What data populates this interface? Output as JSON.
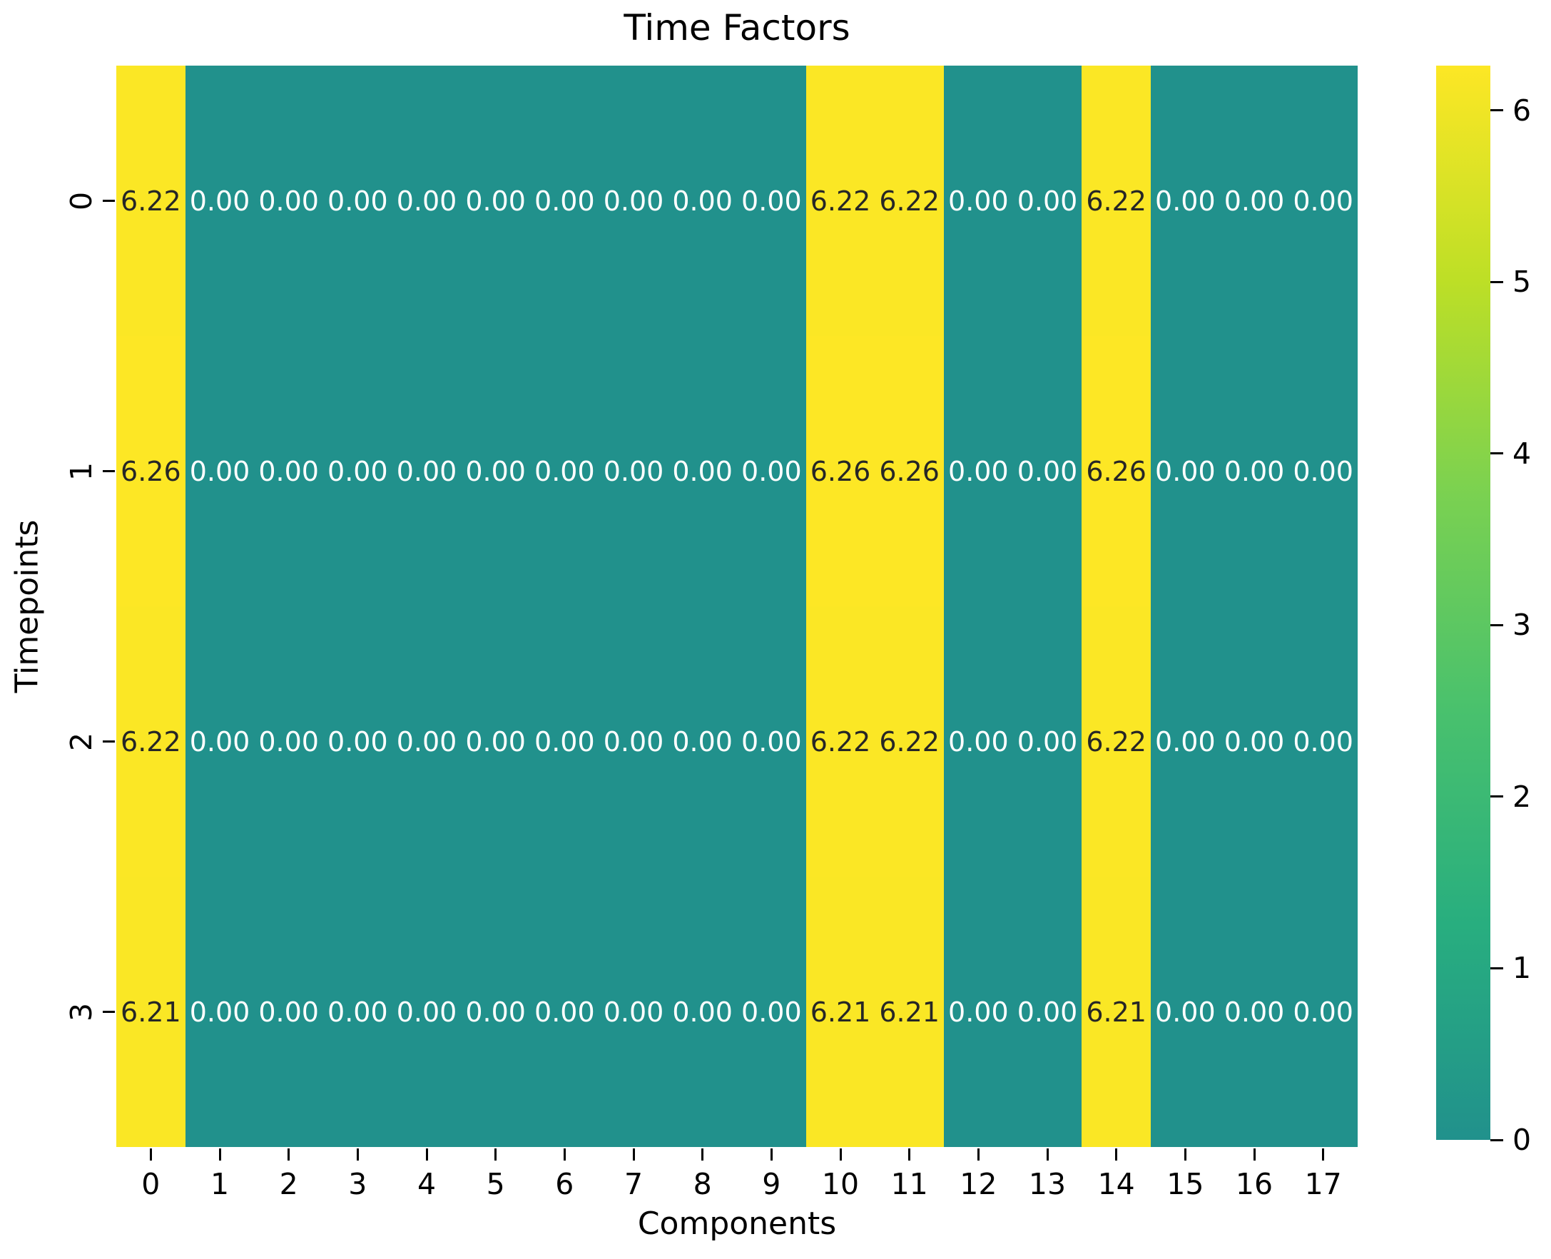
{
  "chart_data": {
    "type": "heatmap",
    "title": "Time Factors",
    "xlabel": "Components",
    "ylabel": "Timepoints",
    "x_ticks": [
      "0",
      "1",
      "2",
      "3",
      "4",
      "5",
      "6",
      "7",
      "8",
      "9",
      "10",
      "11",
      "12",
      "13",
      "14",
      "15",
      "16",
      "17"
    ],
    "y_ticks": [
      "0",
      "1",
      "2",
      "3"
    ],
    "values": [
      [
        6.22,
        0.0,
        0.0,
        0.0,
        0.0,
        0.0,
        0.0,
        0.0,
        0.0,
        0.0,
        6.22,
        6.22,
        0.0,
        0.0,
        6.22,
        0.0,
        0.0,
        0.0
      ],
      [
        6.26,
        0.0,
        0.0,
        0.0,
        0.0,
        0.0,
        0.0,
        0.0,
        0.0,
        0.0,
        6.26,
        6.26,
        0.0,
        0.0,
        6.26,
        0.0,
        0.0,
        0.0
      ],
      [
        6.22,
        0.0,
        0.0,
        0.0,
        0.0,
        0.0,
        0.0,
        0.0,
        0.0,
        0.0,
        6.22,
        6.22,
        0.0,
        0.0,
        6.22,
        0.0,
        0.0,
        0.0
      ],
      [
        6.21,
        0.0,
        0.0,
        0.0,
        0.0,
        0.0,
        0.0,
        0.0,
        0.0,
        0.0,
        6.21,
        6.21,
        0.0,
        0.0,
        6.21,
        0.0,
        0.0,
        0.0
      ]
    ],
    "annot_decimals": 2,
    "vmin": 0,
    "vmax": 6.26,
    "colorbar_ticks": [
      "0",
      "1",
      "2",
      "3",
      "4",
      "5",
      "6"
    ],
    "legend_position": "right-colorbar",
    "grid": false
  },
  "colors": {
    "gradient_low_to_high": [
      "#21918c",
      "#28ae7f",
      "#49c16d",
      "#7ad151",
      "#bddf26",
      "#fde725"
    ],
    "annot_on_dark": "#ffffff",
    "annot_on_light": "#262626",
    "background": "#ffffff",
    "tick_color": "#000000"
  }
}
